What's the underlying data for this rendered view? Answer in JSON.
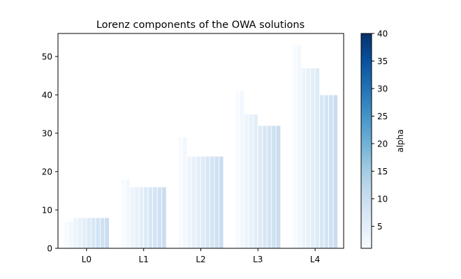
{
  "chart_data": {
    "type": "bar",
    "title": "Lorenz components of the OWA solutions",
    "xlabel": "",
    "ylabel": "",
    "categories": [
      "L0",
      "L1",
      "L2",
      "L3",
      "L4"
    ],
    "ylim": [
      0,
      56
    ],
    "yticks": [
      0,
      10,
      20,
      30,
      40,
      50
    ],
    "grid": false,
    "series": [
      {
        "alpha": 1,
        "values": [
          7,
          18,
          29,
          41,
          53
        ]
      },
      {
        "alpha": 2,
        "values": [
          7,
          18,
          29,
          41,
          53
        ]
      },
      {
        "alpha": 3,
        "values": [
          8,
          16,
          24,
          35,
          47
        ]
      },
      {
        "alpha": 4,
        "values": [
          8,
          16,
          24,
          35,
          47
        ]
      },
      {
        "alpha": 5,
        "values": [
          8,
          16,
          24,
          35,
          47
        ]
      },
      {
        "alpha": 6,
        "values": [
          8,
          16,
          24,
          32,
          47
        ]
      },
      {
        "alpha": 7,
        "values": [
          8,
          16,
          24,
          32,
          40
        ]
      },
      {
        "alpha": 8,
        "values": [
          8,
          16,
          24,
          32,
          40
        ]
      },
      {
        "alpha": 9,
        "values": [
          8,
          16,
          24,
          32,
          40
        ]
      },
      {
        "alpha": 10,
        "values": [
          8,
          16,
          24,
          32,
          40
        ]
      }
    ],
    "colorbar": {
      "label": "alpha",
      "range": [
        1,
        40
      ],
      "ticks": [
        5,
        10,
        15,
        20,
        25,
        30,
        35,
        40
      ],
      "colormap": "Blues",
      "stops": [
        "#f7fbff",
        "#deebf7",
        "#c6dbef",
        "#9ecae1",
        "#6baed6",
        "#4292c6",
        "#2171b5",
        "#08519c",
        "#08306b"
      ]
    }
  }
}
